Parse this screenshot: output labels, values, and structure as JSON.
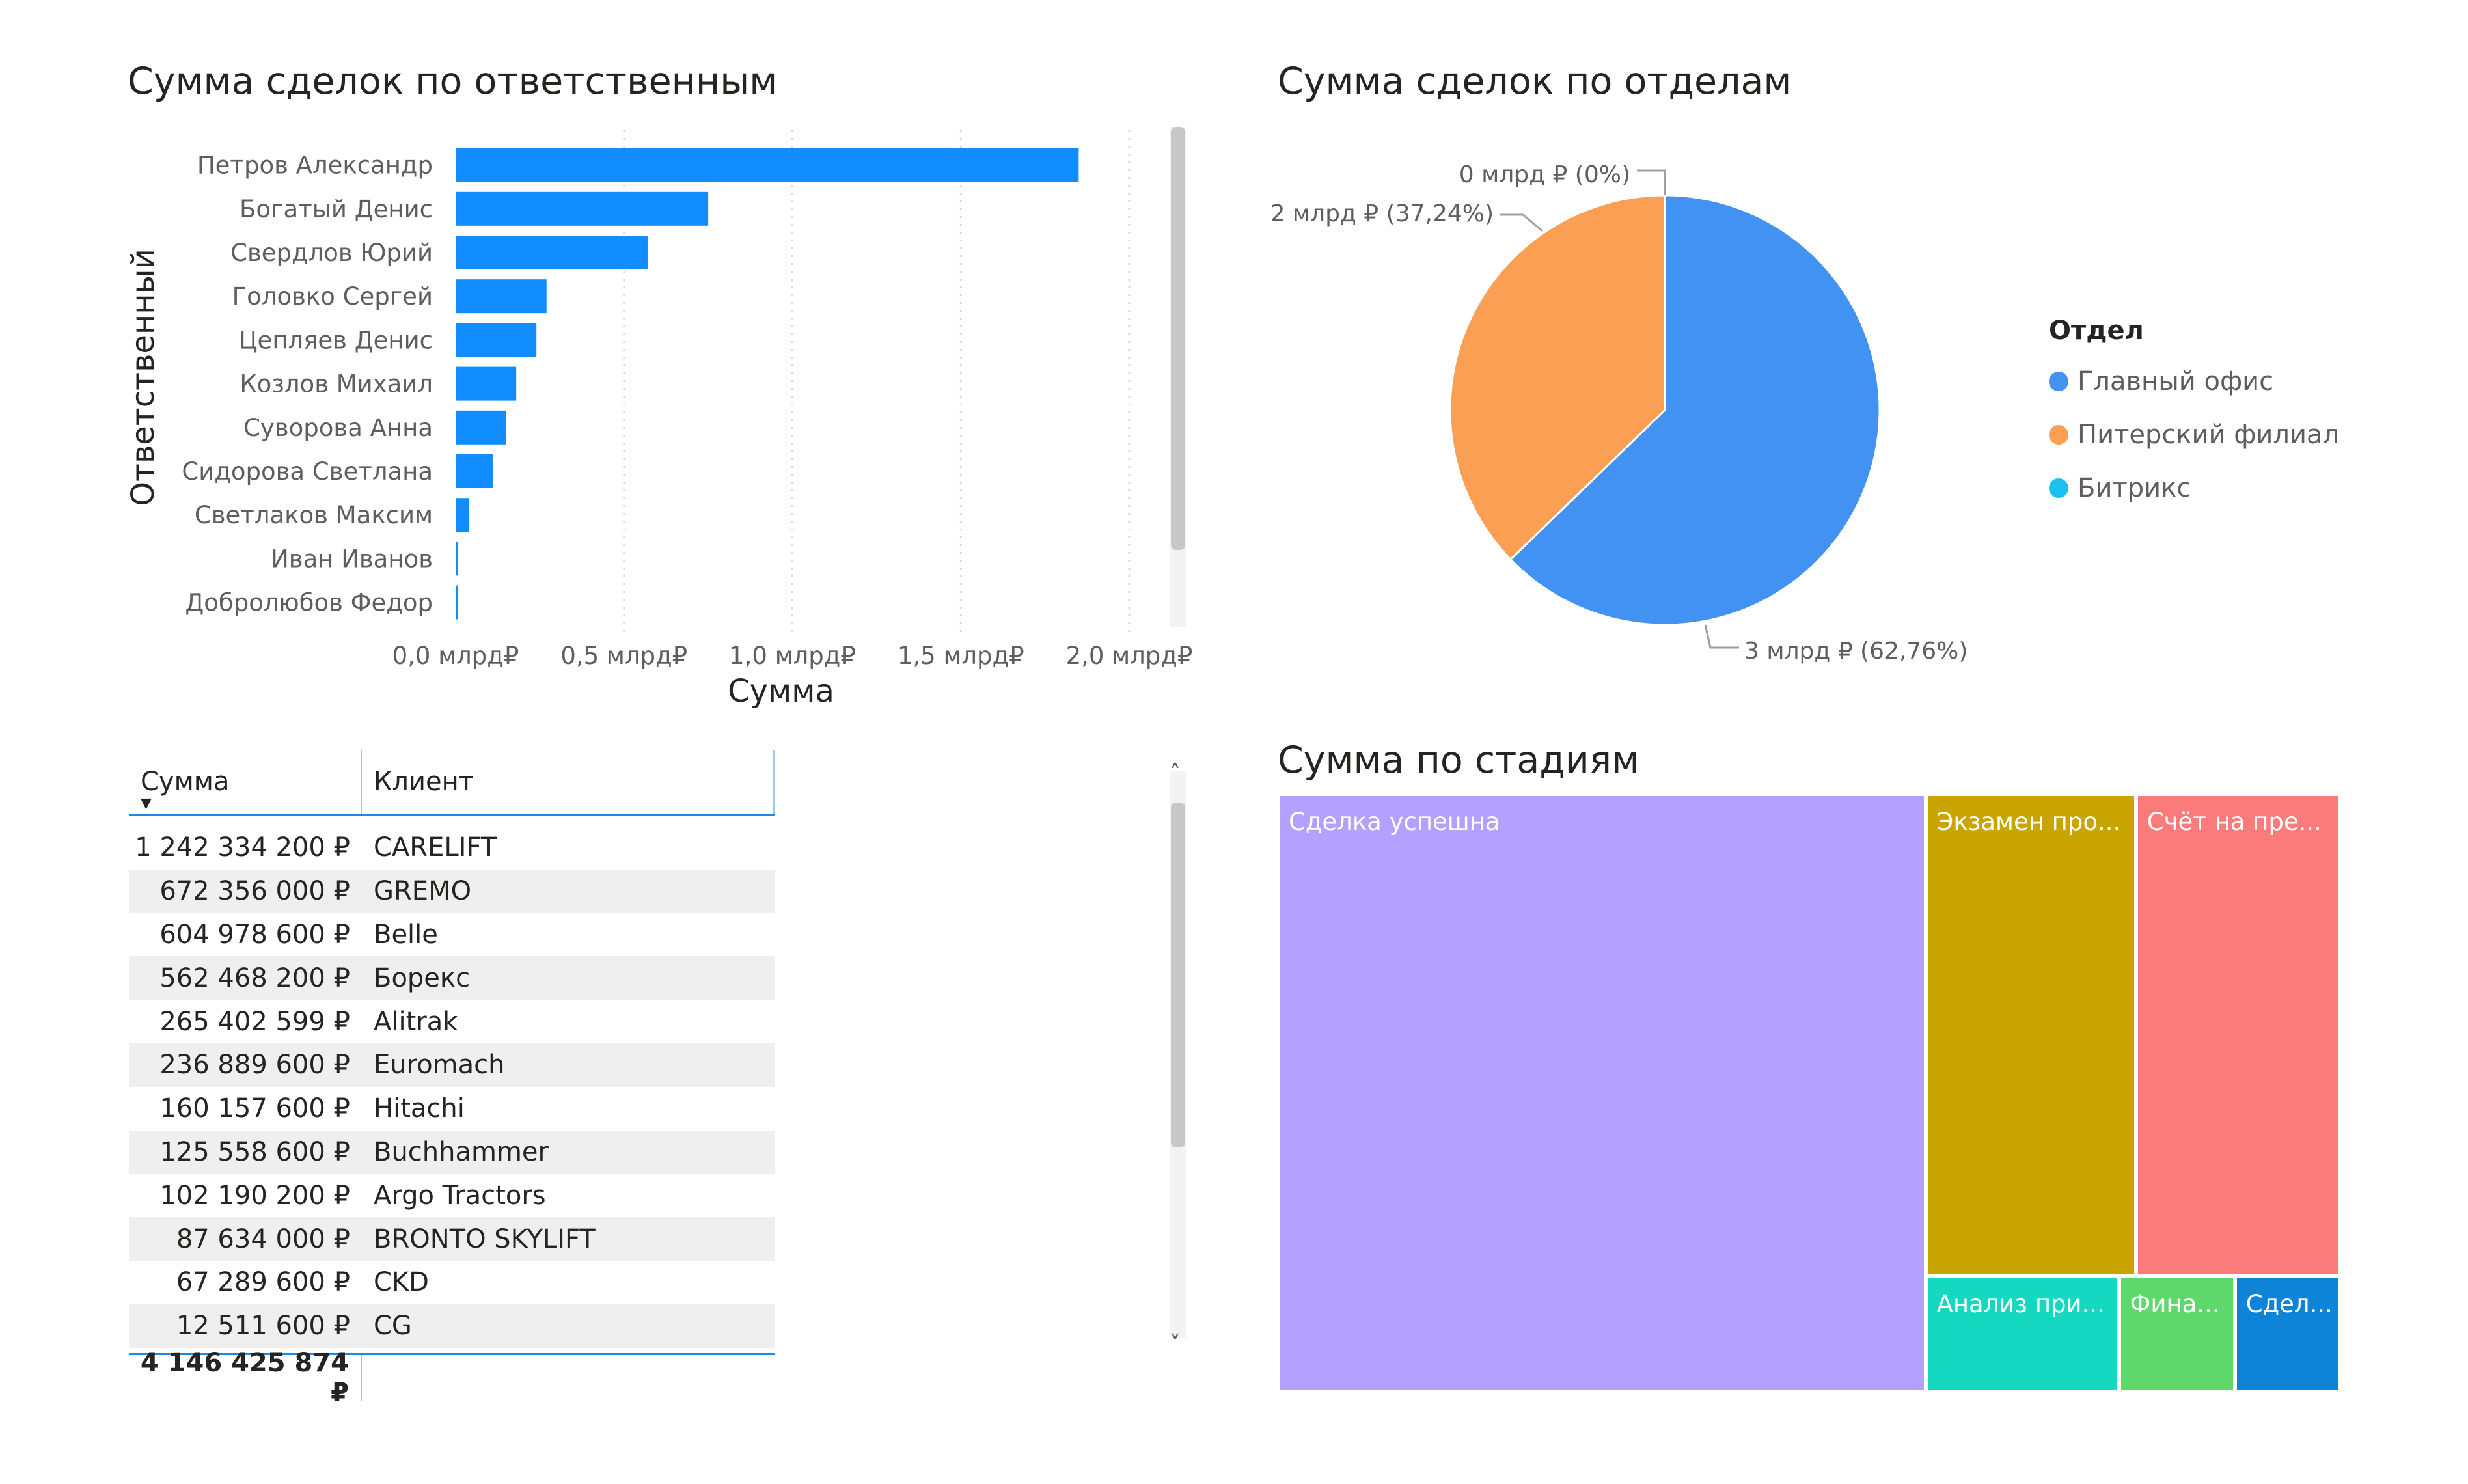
{
  "charts": {
    "bar": {
      "title": "Сумма сделок по ответственным"
    },
    "pie": {
      "title": "Сумма сделок по отделам"
    },
    "treemap": {
      "title": "Сумма по стадиям"
    }
  },
  "chart_data": [
    {
      "type": "bar",
      "orientation": "horizontal",
      "title": "Сумма сделок по ответственным",
      "xlabel": "Сумма",
      "ylabel": "Ответственный",
      "categories": [
        "Петров Александр",
        "Богатый Денис",
        "Свердлов Юрий",
        "Головко Сергей",
        "Цепляев Денис",
        "Козлов Михаил",
        "Суворова Анна",
        "Сидорова Светлана",
        "Светлаков Максим",
        "Иван Иванов",
        "Добролюбов Федор"
      ],
      "values": [
        1.85,
        0.75,
        0.57,
        0.27,
        0.24,
        0.18,
        0.15,
        0.11,
        0.04,
        0.005,
        0.003
      ],
      "value_units": "млрд ₽",
      "xlim": [
        0,
        2.0
      ],
      "xticks": [
        "0,0 млрд₽",
        "0,5 млрд₽",
        "1,0 млрд₽",
        "1,5 млрд₽",
        "2,0 млрд₽"
      ],
      "grid": true,
      "color": "#118dff"
    },
    {
      "type": "pie",
      "title": "Сумма сделок по отделам",
      "legend_title": "Отдел",
      "legend_position": "right",
      "slices": [
        {
          "name": "Главный офис",
          "percent": 62.76,
          "label": "3 млрд ₽ (62,76%)",
          "color": "#4292f4"
        },
        {
          "name": "Питерский филиал",
          "percent": 37.24,
          "label": "2 млрд ₽ (37,24%)",
          "color": "#fa9f54"
        },
        {
          "name": "Битрикс",
          "percent": 0,
          "label": "0 млрд ₽ (0%)",
          "color": "#1ac0f0"
        }
      ]
    },
    {
      "type": "table",
      "columns": [
        "Сумма",
        "Клиент"
      ],
      "sort": "Сумма desc",
      "rows": [
        [
          "1 242 334 200 ₽",
          "CARELIFT"
        ],
        [
          "672 356 000 ₽",
          "GREMO"
        ],
        [
          "604 978 600 ₽",
          "Belle"
        ],
        [
          "562 468 200 ₽",
          "Борекс"
        ],
        [
          "265 402 599 ₽",
          "Alitrak"
        ],
        [
          "236 889 600 ₽",
          "Euromach"
        ],
        [
          "160 157 600 ₽",
          "Hitachi"
        ],
        [
          "125 558 600 ₽",
          "Buchhammer"
        ],
        [
          "102 190 200 ₽",
          "Argo Tractors"
        ],
        [
          "87 634 000 ₽",
          "BRONTO SKYLIFT"
        ],
        [
          "67 289 600 ₽",
          "CKD"
        ],
        [
          "12 511 600 ₽",
          "CG"
        ]
      ],
      "total": "4 146 425 874 ₽"
    },
    {
      "type": "treemap",
      "title": "Сумма по стадиям",
      "tiles": [
        {
          "label": "Сделка успешна",
          "share": 0.61,
          "color": "#b4a0ff"
        },
        {
          "label": "Экзамен про...",
          "share": 0.16,
          "color": "#c8a500"
        },
        {
          "label": "Счёт на пре...",
          "share": 0.155,
          "color": "#fb7b7b"
        },
        {
          "label": "Анализ при...",
          "share": 0.035,
          "color": "#14d8bf"
        },
        {
          "label": "Фина...",
          "share": 0.021,
          "color": "#5fd86b"
        },
        {
          "label": "Сдел...",
          "share": 0.019,
          "color": "#0e84d8"
        }
      ]
    }
  ]
}
